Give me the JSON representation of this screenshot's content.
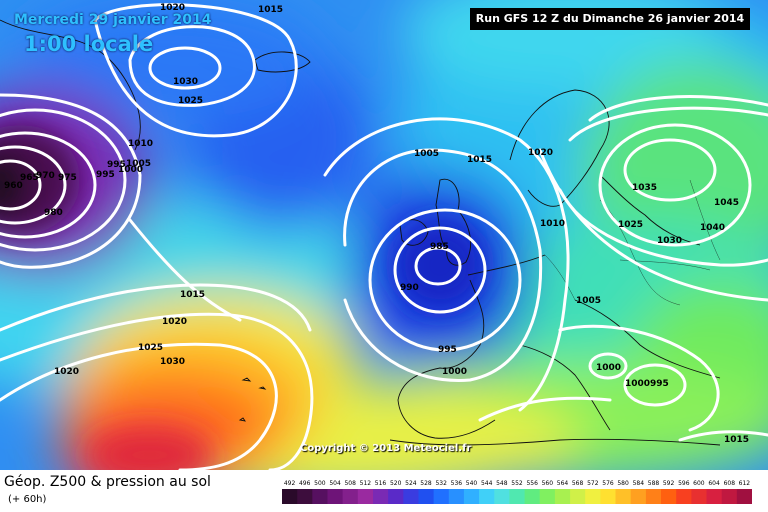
{
  "header": {
    "date": "Mercredi 29 janvier 2014",
    "hour": "1:00 locale",
    "run": "Run GFS 12 Z du Dimanche 26 janvier 2014"
  },
  "footer": {
    "title": "Géop. Z500 & pression au sol",
    "subtitle": "(+ 60h)",
    "copyright": "Copyright © 2013 Meteociel.fr"
  },
  "legend": {
    "values": [
      "492",
      "496",
      "500",
      "504",
      "508",
      "512",
      "516",
      "520",
      "524",
      "528",
      "532",
      "536",
      "540",
      "544",
      "548",
      "552",
      "556",
      "560",
      "564",
      "568",
      "572",
      "576",
      "580",
      "584",
      "588",
      "592",
      "596",
      "600",
      "604",
      "608",
      "612"
    ],
    "colors": [
      "#2a0a2a",
      "#3d0d3d",
      "#561060",
      "#6e1478",
      "#83208c",
      "#9a2aa0",
      "#7a2ab4",
      "#5a2ac8",
      "#3a3ce0",
      "#2050f0",
      "#2070ff",
      "#2890ff",
      "#30b0ff",
      "#40d0f8",
      "#50e0e0",
      "#50e8b0",
      "#60ec80",
      "#80f060",
      "#a8f050",
      "#d0f048",
      "#f0f040",
      "#ffe030",
      "#ffc028",
      "#ffa020",
      "#ff8018",
      "#ff6010",
      "#f84020",
      "#e83030",
      "#d82040",
      "#c01840",
      "#a01040"
    ]
  },
  "isobars": [
    {
      "label": "1020",
      "role": "label"
    },
    {
      "label": "1015",
      "role": "label"
    },
    {
      "label": "1030",
      "role": "label"
    },
    {
      "label": "1025",
      "role": "label"
    },
    {
      "label": "1010",
      "role": "label"
    },
    {
      "label": "1005",
      "role": "label"
    },
    {
      "label": "995",
      "role": "label"
    },
    {
      "label": "1000",
      "role": "label"
    },
    {
      "label": "960",
      "role": "label"
    },
    {
      "label": "965",
      "role": "label"
    },
    {
      "label": "970",
      "role": "label"
    },
    {
      "label": "975",
      "role": "label"
    },
    {
      "label": "985",
      "role": "label"
    },
    {
      "label": "980",
      "role": "label"
    },
    {
      "label": "1035",
      "role": "label"
    },
    {
      "label": "1045",
      "role": "label"
    },
    {
      "label": "1040",
      "role": "label"
    },
    {
      "label": "990",
      "role": "label"
    }
  ]
}
